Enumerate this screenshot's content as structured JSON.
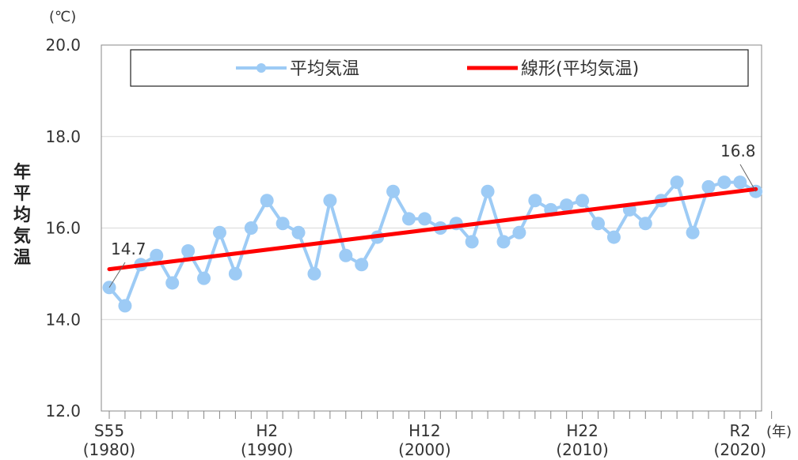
{
  "chart_data": {
    "type": "line",
    "ylabel": "年平均気温",
    "y_unit": "(℃)",
    "x_unit": "(年)",
    "ylim": [
      12.0,
      20.0
    ],
    "y_ticks": [
      "12.0",
      "14.0",
      "16.0",
      "18.0",
      "20.0"
    ],
    "x_ticks": [
      {
        "year": 1980,
        "era": "S55",
        "ad": "(1980)"
      },
      {
        "year": 1990,
        "era": "H2",
        "ad": "(1990)"
      },
      {
        "year": 2000,
        "era": "H12",
        "ad": "(2000)"
      },
      {
        "year": 2010,
        "era": "H22",
        "ad": "(2010)"
      },
      {
        "year": 2020,
        "era": "R2",
        "ad": "(2020)"
      }
    ],
    "x": [
      1980,
      1981,
      1982,
      1983,
      1984,
      1985,
      1986,
      1987,
      1988,
      1989,
      1990,
      1991,
      1992,
      1993,
      1994,
      1995,
      1996,
      1997,
      1998,
      1999,
      2000,
      2001,
      2002,
      2003,
      2004,
      2005,
      2006,
      2007,
      2008,
      2009,
      2010,
      2011,
      2012,
      2013,
      2014,
      2015,
      2016,
      2017,
      2018,
      2019,
      2020,
      2021
    ],
    "series": [
      {
        "name": "平均気温",
        "color": "#9dcbf5",
        "values": [
          14.7,
          14.3,
          15.2,
          15.4,
          14.8,
          15.5,
          14.9,
          15.9,
          15.0,
          16.0,
          16.6,
          16.1,
          15.9,
          15.0,
          16.6,
          15.4,
          15.2,
          15.8,
          16.8,
          16.2,
          16.2,
          16.0,
          16.1,
          15.7,
          16.8,
          15.7,
          15.9,
          16.6,
          16.4,
          16.5,
          16.6,
          16.1,
          15.8,
          16.4,
          16.1,
          16.6,
          17.0,
          15.9,
          16.9,
          17.0,
          17.0,
          16.8
        ]
      },
      {
        "name": "線形(平均気温)",
        "color": "#ff0000",
        "trend": {
          "start": 15.1,
          "end": 16.85
        }
      }
    ],
    "annotations": [
      {
        "text": "14.7",
        "year": 1980
      },
      {
        "text": "16.8",
        "year": 2021
      }
    ],
    "grid": true,
    "legend_position": "top"
  }
}
